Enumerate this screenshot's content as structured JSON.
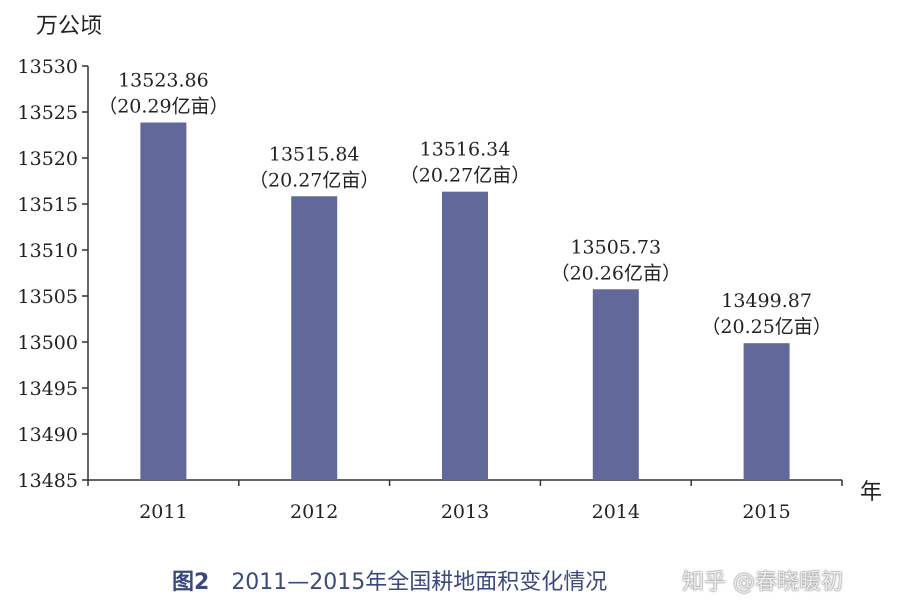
{
  "chart_data": {
    "type": "bar",
    "categories": [
      "2011",
      "2012",
      "2013",
      "2014",
      "2015"
    ],
    "values": [
      13523.86,
      13515.84,
      13516.34,
      13505.73,
      13499.87
    ],
    "value_labels": [
      "13523.86",
      "13515.84",
      "13516.34",
      "13505.73",
      "13499.87"
    ],
    "sub_labels": [
      "（20.29亿亩）",
      "（20.27亿亩）",
      "（20.27亿亩）",
      "（20.26亿亩）",
      "（20.25亿亩）"
    ],
    "ylabel": "万公顷",
    "xlabel": "年",
    "ylim": [
      13485,
      13530
    ],
    "yticks": [
      13530,
      13525,
      13520,
      13515,
      13510,
      13505,
      13500,
      13495,
      13490,
      13485
    ],
    "grid": false,
    "bar_color": "#626899"
  },
  "caption": {
    "figure": "图2",
    "title": "2011—2015年全国耕地面积变化情况"
  },
  "watermark": "知乎 @春晓暖初"
}
